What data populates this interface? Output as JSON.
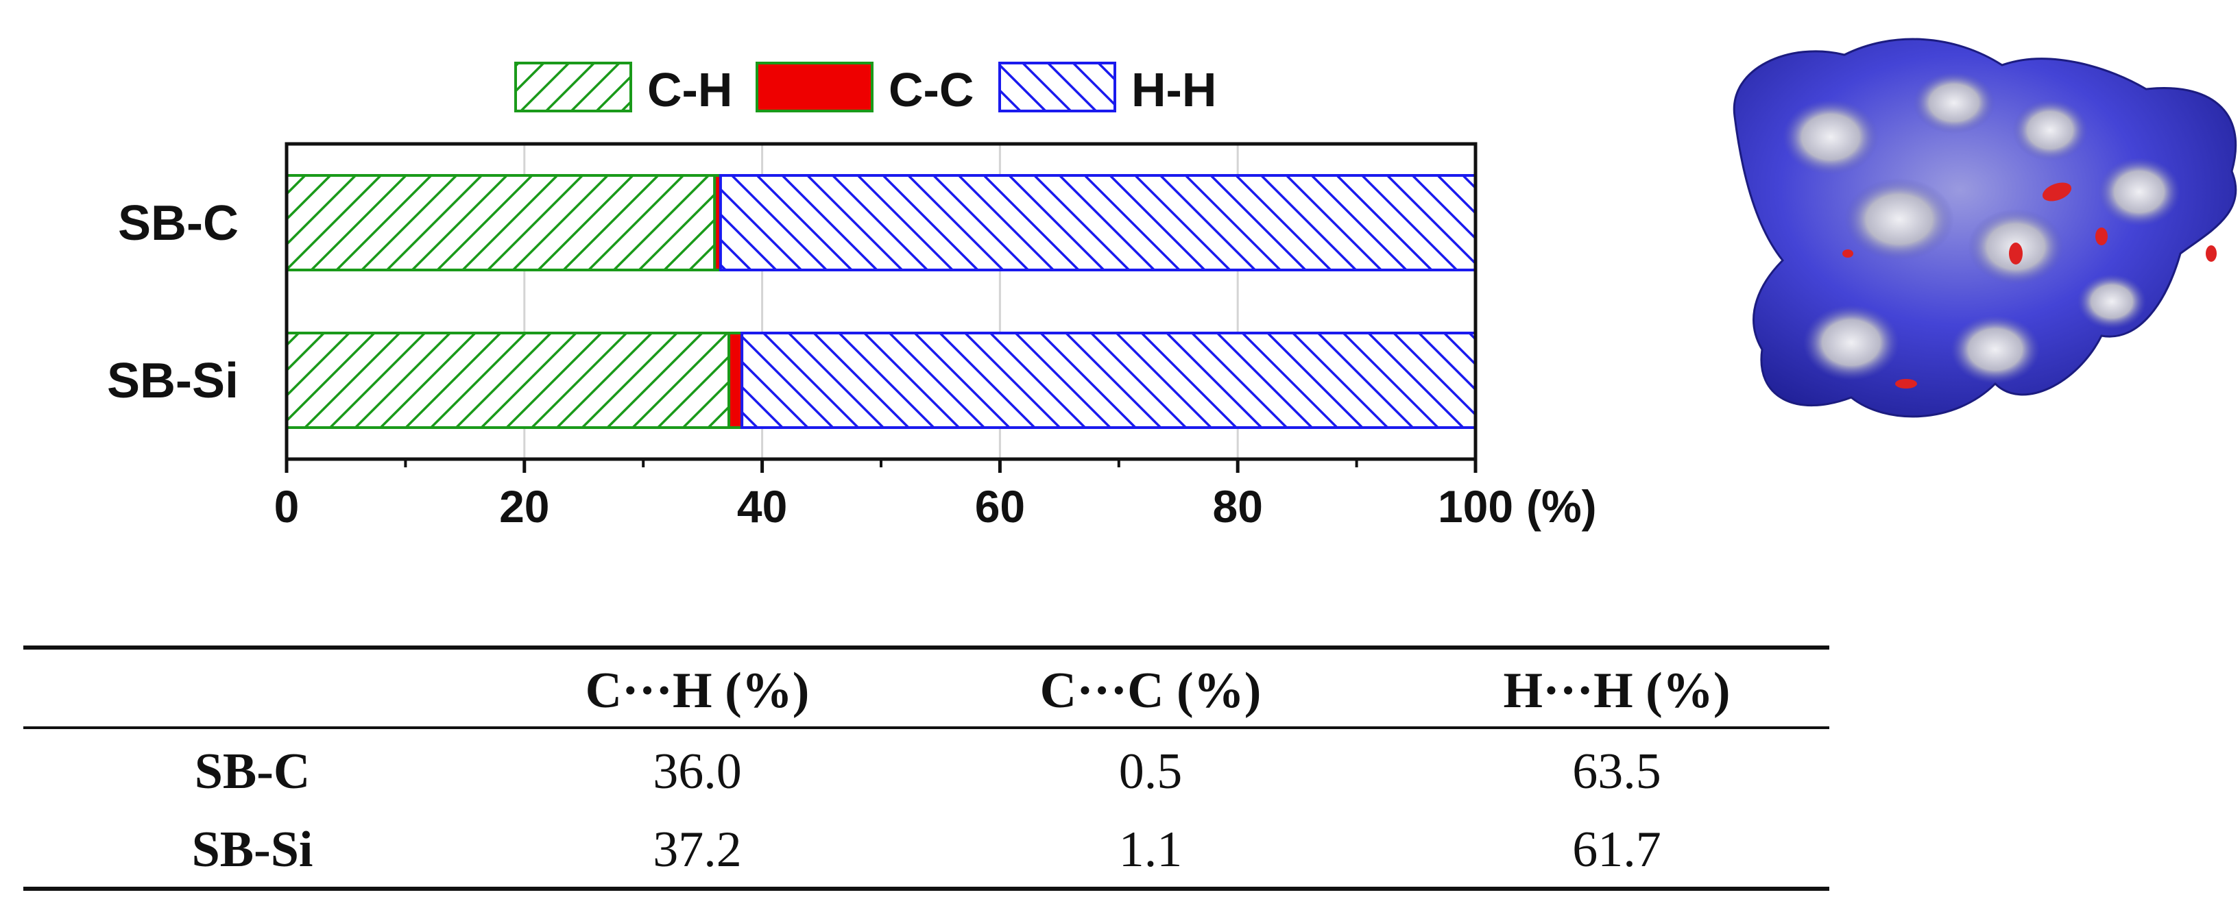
{
  "chart_data": {
    "type": "bar",
    "orientation": "horizontal",
    "stacked": true,
    "categories": [
      "SB-C",
      "SB-Si"
    ],
    "series": [
      {
        "name": "C-H",
        "values": [
          36.0,
          37.2
        ],
        "color": "#1a9a1a",
        "pattern": "diagonal-hatch-forward"
      },
      {
        "name": "C-C",
        "values": [
          0.5,
          1.1
        ],
        "color": "#ee0000",
        "pattern": "solid"
      },
      {
        "name": "H-H",
        "values": [
          63.5,
          61.7
        ],
        "color": "#1a1aee",
        "pattern": "diagonal-hatch-backward"
      }
    ],
    "xlim": [
      0,
      100
    ],
    "x_ticks": [
      "0",
      "20",
      "40",
      "60",
      "80",
      "100"
    ],
    "x_unit": "(%)",
    "grid": "vertical",
    "legend_position": "top"
  },
  "table": {
    "headers": [
      "",
      "C···H (%)",
      "C···C (%)",
      "H···H (%)"
    ],
    "rows": [
      {
        "label": "SB-C",
        "values": [
          "36.0",
          "0.5",
          "63.5"
        ]
      },
      {
        "label": "SB-Si",
        "values": [
          "37.2",
          "1.1",
          "61.7"
        ]
      }
    ]
  },
  "surface_image": {
    "icon": "hirshfeld-surface-render",
    "base_color": "#3a3ad8",
    "highlight_color": "#dd2222"
  }
}
